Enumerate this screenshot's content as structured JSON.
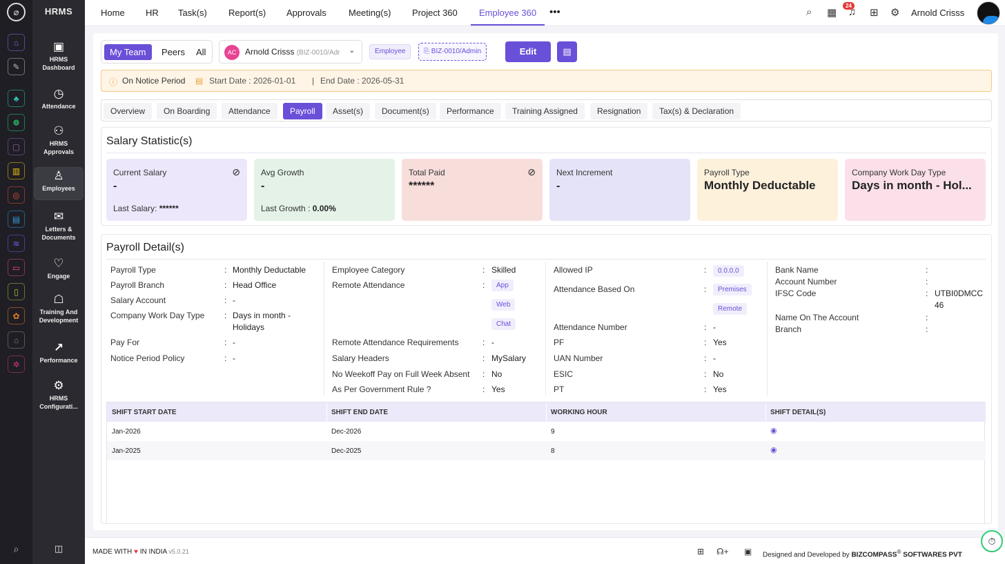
{
  "app": {
    "brand": "HRMS"
  },
  "rail": {
    "icons": [
      "home-icon",
      "pin-icon",
      "team-icon",
      "leaf-icon",
      "briefcase-icon",
      "chart-icon",
      "target-icon",
      "box-icon",
      "layers-icon",
      "screen-icon",
      "file-icon",
      "award-icon",
      "house-icon",
      "gear-icon"
    ],
    "colors": [
      "#8a6df0",
      "#bbbbbb",
      "#2ec4b6",
      "#2ecc71",
      "#9b59b6",
      "#f1c40f",
      "#e74c3c",
      "#3498db",
      "#6c5ce7",
      "#e84393",
      "#a4c639",
      "#e67e22",
      "#888888",
      "#d63384"
    ]
  },
  "sidebar": {
    "items": [
      {
        "label": "HRMS Dashboard",
        "icon": "dashboard-icon"
      },
      {
        "label": "Attendance",
        "icon": "clock-icon"
      },
      {
        "label": "HRMS Approvals",
        "icon": "approvals-icon"
      },
      {
        "label": "Employees",
        "icon": "user-icon"
      },
      {
        "label": "Letters & Documents",
        "icon": "mail-icon"
      },
      {
        "label": "Engage",
        "icon": "handshake-icon"
      },
      {
        "label": "Training And Development",
        "icon": "training-icon"
      },
      {
        "label": "Performance",
        "icon": "trend-icon"
      },
      {
        "label": "HRMS Configurati...",
        "icon": "gear-icon"
      }
    ]
  },
  "topnav": {
    "items": [
      "Home",
      "HR",
      "Task(s)",
      "Report(s)",
      "Approvals",
      "Meeting(s)",
      "Project 360",
      "Employee 360"
    ],
    "active": "Employee 360",
    "notifications": "24",
    "user": "Arnold Crisss"
  },
  "toolbar": {
    "scope": [
      "My Team",
      "Peers",
      "All"
    ],
    "scope_active": "My Team",
    "employee_initials": "AC",
    "employee_name": "Arnold Crisss",
    "employee_code": "(BIZ-0010/Adr",
    "role_tag": "Employee",
    "code_tag": "BIZ-0010/Admin",
    "edit_label": "Edit"
  },
  "notice": {
    "status": "On Notice Period",
    "start": "Start Date : 2026-01-01",
    "sep": "|",
    "end": "End Date : 2026-05-31"
  },
  "tabs": [
    "Overview",
    "On Boarding",
    "Attendance",
    "Payroll",
    "Asset(s)",
    "Document(s)",
    "Performance",
    "Training Assigned",
    "Resignation",
    "Tax(s) & Declaration"
  ],
  "tabs_active": "Payroll",
  "salary": {
    "title": "Salary Statistic(s)",
    "cards": [
      {
        "label": "Current Salary",
        "value": "-",
        "sub_label": "Last Salary:",
        "sub_value": "******",
        "color": "#ede7fb"
      },
      {
        "label": "Avg Growth",
        "value": "-",
        "sub_label": "Last Growth :",
        "sub_value": "0.00%",
        "color": "#e4f2e7"
      },
      {
        "label": "Total Paid",
        "value": "******",
        "sub_label": "",
        "sub_value": "",
        "color": "#f8dedb"
      },
      {
        "label": "Next Increment",
        "value": "-",
        "sub_label": "",
        "sub_value": "",
        "color": "#e5e3f8"
      },
      {
        "label": "Payroll Type",
        "value": "Monthly Deductable",
        "sub_label": "",
        "sub_value": "",
        "color": "#fdf1dc"
      },
      {
        "label": "Company Work Day Type",
        "value": "Days in month - Hol...",
        "sub_label": "",
        "sub_value": "",
        "color": "#fbe0ea"
      }
    ]
  },
  "payroll": {
    "title": "Payroll Detail(s)",
    "col1": [
      {
        "k": "Payroll Type",
        "v": "Monthly Deductable"
      },
      {
        "k": "Payroll Branch",
        "v": "Head Office"
      },
      {
        "k": "Salary Account",
        "v": "-"
      },
      {
        "k": "Company Work Day Type",
        "v": "Days in month -",
        "v2": "Holidays"
      },
      {
        "k": "Pay For",
        "v": "-"
      },
      {
        "k": "Notice Period Policy",
        "v": "-"
      }
    ],
    "col2": [
      {
        "k": "Employee Category",
        "v": "Skilled"
      },
      {
        "k": "Remote Attendance",
        "chips": [
          "App",
          "Web",
          "Chat"
        ]
      },
      {
        "k": "Remote Attendance Requirements",
        "v": "-"
      },
      {
        "k": "Salary Headers",
        "v": "MySalary"
      },
      {
        "k": "No Weekoff Pay on Full Week Absent",
        "v": "No"
      },
      {
        "k": "As Per Government Rule ?",
        "v": "Yes"
      }
    ],
    "col3": [
      {
        "k": "Allowed IP",
        "chips": [
          "0.0.0.0"
        ]
      },
      {
        "k": "Attendance Based On",
        "chips": [
          "Premises",
          "Remote"
        ]
      },
      {
        "k": "Attendance Number",
        "v": "-"
      },
      {
        "k": "PF",
        "v": "Yes"
      },
      {
        "k": "UAN Number",
        "v": "-"
      },
      {
        "k": "ESIC",
        "v": "No"
      },
      {
        "k": "PT",
        "v": "Yes"
      }
    ],
    "col4": [
      {
        "k": "Bank Name",
        "v": ""
      },
      {
        "k": "Account Number",
        "v": ""
      },
      {
        "k": "IFSC Code",
        "v": "UTBI0DMCC",
        "v2": "46"
      },
      {
        "k": "Name On The Account",
        "v": ""
      },
      {
        "k": "Branch",
        "v": ""
      }
    ]
  },
  "shift_table": {
    "headers": [
      "SHIFT START DATE",
      "SHIFT END DATE",
      "WORKING HOUR",
      "SHIFT DETAIL(S)"
    ],
    "rows": [
      [
        "Jan-2026",
        "Dec-2026",
        "9"
      ],
      [
        "Jan-2025",
        "Dec-2025",
        "8"
      ]
    ]
  },
  "footer": {
    "made": "MADE WITH",
    "in_india": "IN INDIA",
    "version": "v5.0.21",
    "designed": "Designed and Developed by",
    "company": "BIZCOMPASS",
    "reg": "®",
    "company_tail": "SOFTWARES PVT"
  }
}
